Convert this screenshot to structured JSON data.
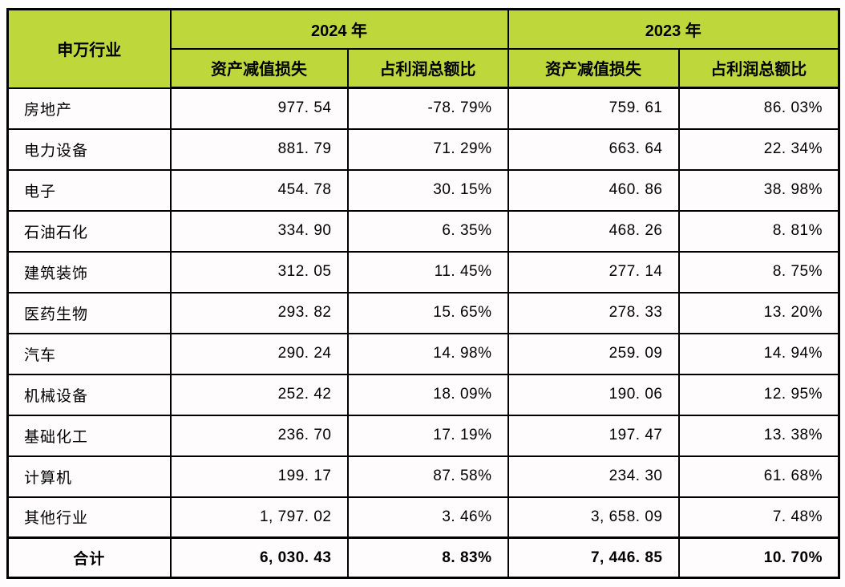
{
  "colors": {
    "header_bg": "#BED83C",
    "border": "#000000",
    "cell_bg": "#FEFCFC",
    "text": "#000000"
  },
  "table": {
    "header": {
      "industry": "申万行业",
      "year2024": "2024 年",
      "year2023": "2023 年",
      "impairment_2024": "资产减值损失",
      "ratio_2024": "占利润总额比",
      "impairment_2023": "资产减值损失",
      "ratio_2023": "占利润总额比"
    },
    "rows": [
      {
        "industry": "房地产",
        "v2024": "977. 54",
        "p2024": "-78. 79%",
        "v2023": "759. 61",
        "p2023": "86. 03%"
      },
      {
        "industry": "电力设备",
        "v2024": "881. 79",
        "p2024": "71. 29%",
        "v2023": "663. 64",
        "p2023": "22. 34%"
      },
      {
        "industry": "电子",
        "v2024": "454. 78",
        "p2024": "30. 15%",
        "v2023": "460. 86",
        "p2023": "38. 98%"
      },
      {
        "industry": "石油石化",
        "v2024": "334. 90",
        "p2024": "6. 35%",
        "v2023": "468. 26",
        "p2023": "8. 81%"
      },
      {
        "industry": "建筑装饰",
        "v2024": "312. 05",
        "p2024": "11. 45%",
        "v2023": "277. 14",
        "p2023": "8. 75%"
      },
      {
        "industry": "医药生物",
        "v2024": "293. 82",
        "p2024": "15. 65%",
        "v2023": "278. 33",
        "p2023": "13. 20%"
      },
      {
        "industry": "汽车",
        "v2024": "290. 24",
        "p2024": "14. 98%",
        "v2023": "259. 09",
        "p2023": "14. 94%"
      },
      {
        "industry": "机械设备",
        "v2024": "252. 42",
        "p2024": "18. 09%",
        "v2023": "190. 06",
        "p2023": "12. 95%"
      },
      {
        "industry": "基础化工",
        "v2024": "236. 70",
        "p2024": "17. 19%",
        "v2023": "197. 47",
        "p2023": "13. 38%"
      },
      {
        "industry": "计算机",
        "v2024": "199. 17",
        "p2024": "87. 58%",
        "v2023": "234. 30",
        "p2023": "61. 68%"
      },
      {
        "industry": "其他行业",
        "v2024": "1, 797. 02",
        "p2024": "3. 46%",
        "v2023": "3, 658. 09",
        "p2023": "7. 48%"
      }
    ],
    "total": {
      "label": "合计",
      "v2024": "6, 030. 43",
      "p2024": "8. 83%",
      "v2023": "7, 446. 85",
      "p2023": "10. 70%"
    }
  },
  "chart_data": {
    "type": "table",
    "title": "",
    "columns": [
      "申万行业",
      "2024年 资产减值损失",
      "2024年 占利润总额比",
      "2023年 资产减值损失",
      "2023年 占利润总额比"
    ],
    "rows": [
      [
        "房地产",
        977.54,
        -78.79,
        759.61,
        86.03
      ],
      [
        "电力设备",
        881.79,
        71.29,
        663.64,
        22.34
      ],
      [
        "电子",
        454.78,
        30.15,
        460.86,
        38.98
      ],
      [
        "石油石化",
        334.9,
        6.35,
        468.26,
        8.81
      ],
      [
        "建筑装饰",
        312.05,
        11.45,
        277.14,
        8.75
      ],
      [
        "医药生物",
        293.82,
        15.65,
        278.33,
        13.2
      ],
      [
        "汽车",
        290.24,
        14.98,
        259.09,
        14.94
      ],
      [
        "机械设备",
        252.42,
        18.09,
        190.06,
        12.95
      ],
      [
        "基础化工",
        236.7,
        17.19,
        197.47,
        13.38
      ],
      [
        "计算机",
        199.17,
        87.58,
        234.3,
        61.68
      ],
      [
        "其他行业",
        1797.02,
        3.46,
        3658.09,
        7.48
      ],
      [
        "合计",
        6030.43,
        8.83,
        7446.85,
        10.7
      ]
    ],
    "notes": "占利润总额比 values are percentages; 资产减值损失 values are currency amounts as shown"
  }
}
